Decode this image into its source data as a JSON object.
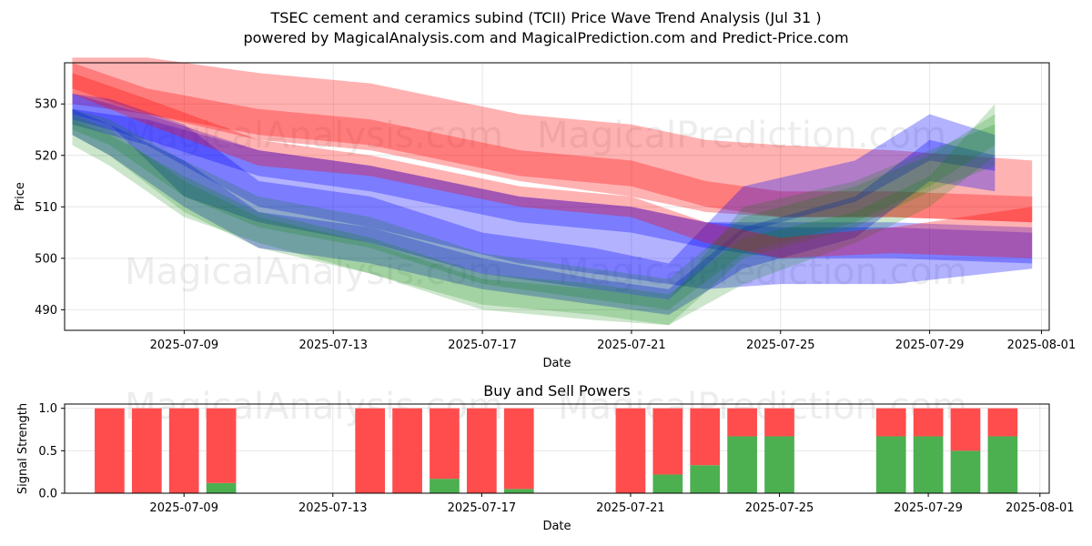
{
  "title_line1": "TSEC cement and ceramics subind (TCII) Price Wave Trend Analysis (Jul 31 )",
  "title_line2": "powered by MagicalAnalysis.com and MagicalPrediction.com and Predict-Price.com",
  "watermarks": [
    "MagicalAnalysis.com",
    "MagicalPrediction.com",
    "MagicalAnalysis.com",
    "MagicalPrediction.com",
    "MagicalAnalysis.com",
    "MagicalPrediction.com"
  ],
  "colors": {
    "red": "#ff0000",
    "blue": "#0000ff",
    "green": "#008000",
    "buy": "#4caf50",
    "sell": "#ff4d4d",
    "grid": "#e6e6e6"
  },
  "chart_data": [
    {
      "type": "area",
      "title": "",
      "xlabel": "Date",
      "ylabel": "Price",
      "x_ticks": [
        "2025-07-09",
        "2025-07-13",
        "2025-07-17",
        "2025-07-21",
        "2025-07-25",
        "2025-07-29",
        "2025-08-01"
      ],
      "y_ticks": [
        490,
        500,
        510,
        520,
        530
      ],
      "xlim": [
        "2025-07-05 19:00",
        "2025-08-01 05:00"
      ],
      "ylim": [
        486,
        538
      ],
      "grid": true,
      "series": [
        {
          "color": "red",
          "x": [
            "2025-07-06",
            "2025-07-08",
            "2025-07-11",
            "2025-07-14",
            "2025-07-18",
            "2025-07-21",
            "2025-07-23",
            "2025-07-25",
            "2025-07-28",
            "2025-07-31 18:00"
          ],
          "upper": [
            539,
            539,
            536,
            534,
            528,
            526,
            523,
            522,
            521,
            519
          ],
          "lower": [
            530,
            528,
            523,
            521,
            515,
            512,
            509,
            508,
            508,
            507
          ]
        },
        {
          "color": "red",
          "x": [
            "2025-07-06",
            "2025-07-08",
            "2025-07-11",
            "2025-07-14",
            "2025-07-18",
            "2025-07-21",
            "2025-07-23",
            "2025-07-25",
            "2025-07-28",
            "2025-07-31 18:00"
          ],
          "upper": [
            538,
            533,
            529,
            527,
            521,
            519,
            515,
            513,
            513,
            512
          ],
          "lower": [
            533,
            528,
            524,
            522,
            516,
            514,
            510,
            508,
            508,
            507
          ]
        },
        {
          "color": "blue",
          "x": [
            "2025-07-06",
            "2025-07-08",
            "2025-07-11",
            "2025-07-14",
            "2025-07-18",
            "2025-07-21",
            "2025-07-23",
            "2025-07-25",
            "2025-07-28",
            "2025-07-31 18:00"
          ],
          "upper": [
            529,
            527,
            521,
            518,
            512,
            510,
            507,
            507,
            507,
            506
          ],
          "lower": [
            526,
            522,
            510,
            506,
            499,
            496,
            494,
            495,
            495,
            498
          ]
        },
        {
          "color": "blue",
          "x": [
            "2025-07-06",
            "2025-07-08",
            "2025-07-11",
            "2025-07-14",
            "2025-07-18",
            "2025-07-21",
            "2025-07-23",
            "2025-07-25",
            "2025-07-28",
            "2025-07-31 18:00"
          ],
          "upper": [
            532,
            528,
            521,
            518,
            512,
            510,
            507,
            506,
            506,
            505
          ],
          "lower": [
            527,
            523,
            516,
            513,
            507,
            505,
            502,
            500,
            500,
            499
          ]
        },
        {
          "color": "blue",
          "x": [
            "2025-07-06",
            "2025-07-07",
            "2025-07-09",
            "2025-07-11",
            "2025-07-14",
            "2025-07-17",
            "2025-07-20",
            "2025-07-22",
            "2025-07-24",
            "2025-07-27",
            "2025-07-29",
            "2025-07-30 18:00"
          ],
          "upper": [
            532,
            531,
            526,
            515,
            512,
            505,
            502,
            499,
            514,
            519,
            528,
            524
          ],
          "lower": [
            528,
            526,
            512,
            507,
            503,
            497,
            494,
            492,
            505,
            511,
            519,
            517
          ]
        },
        {
          "color": "blue",
          "x": [
            "2025-07-06",
            "2025-07-07",
            "2025-07-09",
            "2025-07-11",
            "2025-07-14",
            "2025-07-17",
            "2025-07-20",
            "2025-07-22",
            "2025-07-24",
            "2025-07-27",
            "2025-07-29",
            "2025-07-30 18:00"
          ],
          "upper": [
            529,
            526,
            519,
            509,
            506,
            500,
            496,
            494,
            506,
            512,
            523,
            520
          ],
          "lower": [
            524,
            520,
            510,
            502,
            499,
            494,
            491,
            489,
            498,
            504,
            515,
            513
          ]
        },
        {
          "color": "green",
          "x": [
            "2025-07-06",
            "2025-07-07",
            "2025-07-09",
            "2025-07-11",
            "2025-07-14",
            "2025-07-17",
            "2025-07-20",
            "2025-07-22",
            "2025-07-24",
            "2025-07-27",
            "2025-07-29",
            "2025-07-30 18:00"
          ],
          "upper": [
            527,
            524,
            516,
            509,
            504,
            497,
            495,
            493,
            504,
            509,
            516,
            530
          ],
          "lower": [
            522,
            518,
            508,
            503,
            497,
            491,
            489,
            487,
            495,
            503,
            510,
            520
          ]
        },
        {
          "color": "green",
          "x": [
            "2025-07-06",
            "2025-07-07",
            "2025-07-09",
            "2025-07-11",
            "2025-07-14",
            "2025-07-17",
            "2025-07-20",
            "2025-07-22",
            "2025-07-24",
            "2025-07-27",
            "2025-07-29",
            "2025-07-30 18:00"
          ],
          "upper": [
            529,
            527,
            519,
            512,
            508,
            501,
            498,
            496,
            508,
            514,
            520,
            528
          ],
          "lower": [
            525,
            522,
            512,
            506,
            502,
            495,
            492,
            490,
            501,
            507,
            514,
            522
          ]
        },
        {
          "color": "green",
          "x": [
            "2025-07-06",
            "2025-07-07",
            "2025-07-09",
            "2025-07-11",
            "2025-07-14",
            "2025-07-17",
            "2025-07-20",
            "2025-07-22",
            "2025-07-24",
            "2025-07-27",
            "2025-07-29",
            "2025-07-30 18:00"
          ],
          "upper": [
            528,
            525,
            515,
            508,
            503,
            496,
            494,
            492,
            510,
            515,
            521,
            526
          ],
          "lower": [
            524,
            520,
            509,
            502,
            497,
            490,
            488,
            487,
            500,
            506,
            513,
            518
          ]
        },
        {
          "color": "red",
          "x": [
            "2025-07-06",
            "2025-07-08",
            "2025-07-11",
            "2025-07-14",
            "2025-07-18",
            "2025-07-21",
            "2025-07-23",
            "2025-07-25",
            "2025-07-28",
            "2025-07-31 18:00"
          ],
          "upper": [
            536,
            531,
            523,
            520,
            514,
            512,
            507,
            504,
            506,
            510
          ],
          "lower": [
            532,
            526,
            518,
            516,
            510,
            508,
            503,
            500,
            501,
            500
          ]
        }
      ]
    },
    {
      "type": "bar",
      "title": "Buy and Sell Powers",
      "xlabel": "Date",
      "ylabel": "Signal Strength",
      "x_ticks": [
        "2025-07-09",
        "2025-07-13",
        "2025-07-17",
        "2025-07-21",
        "2025-07-25",
        "2025-07-29",
        "2025-08-01"
      ],
      "y_ticks": [
        "0.0",
        "0.5",
        "1.0"
      ],
      "ylim": [
        0,
        1.05
      ],
      "grid": true,
      "categories": [
        "2025-07-07",
        "2025-07-08",
        "2025-07-09",
        "2025-07-10",
        "2025-07-14",
        "2025-07-15",
        "2025-07-16",
        "2025-07-17",
        "2025-07-18",
        "2025-07-21",
        "2025-07-22",
        "2025-07-23",
        "2025-07-24",
        "2025-07-25",
        "2025-07-28",
        "2025-07-29",
        "2025-07-30",
        "2025-07-31"
      ],
      "series": [
        {
          "name": "Buy",
          "values": [
            0,
            0,
            0,
            0.12,
            0,
            0,
            0.17,
            0,
            0.05,
            0,
            0.22,
            0.33,
            0.67,
            0.67,
            0.67,
            0.67,
            0.5,
            0.67
          ]
        },
        {
          "name": "Sell",
          "values": [
            1,
            1,
            1,
            0.88,
            1,
            1,
            0.83,
            1,
            0.95,
            1,
            0.78,
            0.67,
            0.33,
            0.33,
            0.33,
            0.33,
            0.5,
            0.33
          ]
        }
      ]
    }
  ]
}
